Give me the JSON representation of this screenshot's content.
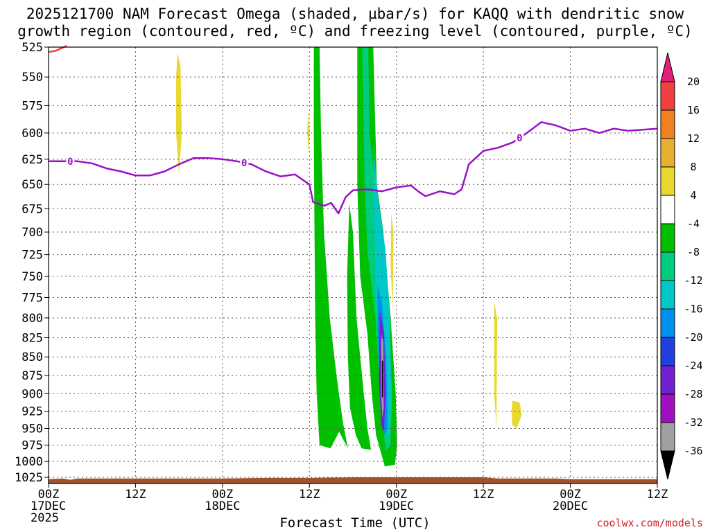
{
  "chart_data": {
    "type": "time-height",
    "title_line1": "2025121700 NAM Forecast Omega (shaded, µbar/s) for KAQQ with dendritic snow",
    "title_line2": "growth region (contoured, red, ºC) and freezing level (contoured, purple, ºC)",
    "xlabel": "Forecast Time (UTC)",
    "credit": "coolwx.com/models",
    "x_range_hours": [
      0,
      84
    ],
    "x_ticks": [
      {
        "h": 0,
        "lines": [
          "00Z",
          "17DEC",
          "2025"
        ]
      },
      {
        "h": 12,
        "lines": [
          "12Z"
        ]
      },
      {
        "h": 24,
        "lines": [
          "00Z",
          "18DEC"
        ]
      },
      {
        "h": 36,
        "lines": [
          "12Z"
        ]
      },
      {
        "h": 48,
        "lines": [
          "00Z",
          "19DEC"
        ]
      },
      {
        "h": 60,
        "lines": [
          "12Z"
        ]
      },
      {
        "h": 72,
        "lines": [
          "00Z",
          "20DEC"
        ]
      },
      {
        "h": 84,
        "lines": [
          "12Z"
        ]
      }
    ],
    "y_range_mb": [
      1035,
      525
    ],
    "y_ticks": [
      "525",
      "550",
      "575",
      "600",
      "625",
      "650",
      "675",
      "700",
      "725",
      "750",
      "775",
      "800",
      "825",
      "850",
      "875",
      "900",
      "925",
      "950",
      "975",
      "1000",
      "1025"
    ],
    "colorbar": {
      "labels": [
        "20",
        "16",
        "12",
        "8",
        "4",
        "-4",
        "-8",
        "-12",
        "-16",
        "-20",
        "-24",
        "-28",
        "-32",
        "-36"
      ],
      "colors": [
        "#e0207a",
        "#f04040",
        "#f08020",
        "#e8b030",
        "#e8d830",
        "#ffffff",
        "#00c000",
        "#00cc80",
        "#00c8c8",
        "#0090f0",
        "#2040e0",
        "#7020d0",
        "#a010c0",
        "#a0a0a0",
        "#000000"
      ]
    },
    "freezing_level_label": "0",
    "freezing_level": [
      [
        0,
        627
      ],
      [
        2,
        627
      ],
      [
        4,
        627
      ],
      [
        6,
        629
      ],
      [
        8,
        634
      ],
      [
        10,
        637
      ],
      [
        12,
        641
      ],
      [
        14,
        641
      ],
      [
        16,
        637
      ],
      [
        18,
        630
      ],
      [
        20,
        624
      ],
      [
        22,
        624
      ],
      [
        24,
        625
      ],
      [
        26,
        627
      ],
      [
        28,
        630
      ],
      [
        30,
        637
      ],
      [
        32,
        642
      ],
      [
        34,
        640
      ],
      [
        35,
        645
      ],
      [
        36,
        650
      ],
      [
        36.5,
        668
      ],
      [
        38,
        672
      ],
      [
        39,
        669
      ],
      [
        40,
        680
      ],
      [
        41,
        663
      ],
      [
        42,
        656
      ],
      [
        44,
        655
      ],
      [
        46,
        657
      ],
      [
        48,
        653
      ],
      [
        50,
        651
      ],
      [
        51,
        657
      ],
      [
        52,
        662
      ],
      [
        54,
        657
      ],
      [
        56,
        660
      ],
      [
        57,
        655
      ],
      [
        58,
        630
      ],
      [
        60,
        617
      ],
      [
        62,
        614
      ],
      [
        64,
        609
      ],
      [
        66,
        600
      ],
      [
        68,
        590
      ],
      [
        70,
        593
      ],
      [
        72,
        598
      ],
      [
        74,
        596
      ],
      [
        76,
        600
      ],
      [
        78,
        596
      ],
      [
        80,
        598
      ],
      [
        82,
        597
      ],
      [
        84,
        596
      ]
    ],
    "dendritic_region": [
      [
        0,
        529
      ],
      [
        1,
        528
      ],
      [
        2.5,
        524
      ]
    ],
    "omega_regions": [
      {
        "level": "-4 to -8",
        "color": "#00c000",
        "polygon": [
          [
            36.6,
            523
          ],
          [
            37.4,
            523
          ],
          [
            37.6,
            600
          ],
          [
            38.0,
            700
          ],
          [
            38.8,
            800
          ],
          [
            39.8,
            880
          ],
          [
            40.6,
            940
          ],
          [
            41.3,
            980
          ],
          [
            40.1,
            955
          ],
          [
            38.9,
            980
          ],
          [
            37.4,
            975
          ],
          [
            37.0,
            900
          ],
          [
            36.8,
            800
          ],
          [
            36.7,
            700
          ],
          [
            36.6,
            600
          ]
        ]
      },
      {
        "level": "-4 to -8",
        "color": "#00c000",
        "polygon": [
          [
            41.5,
            670
          ],
          [
            42.0,
            700
          ],
          [
            42.5,
            800
          ],
          [
            43.0,
            850
          ],
          [
            43.5,
            900
          ],
          [
            44.0,
            950
          ],
          [
            44.5,
            982
          ],
          [
            43.2,
            980
          ],
          [
            42.4,
            960
          ],
          [
            41.6,
            920
          ],
          [
            41.3,
            850
          ],
          [
            41.2,
            750
          ]
        ]
      },
      {
        "level": "-4 to -8",
        "color": "#00c000",
        "polygon": [
          [
            42.6,
            523
          ],
          [
            44.8,
            523
          ],
          [
            45.3,
            650
          ],
          [
            46.2,
            700
          ],
          [
            47.2,
            800
          ],
          [
            47.9,
            900
          ],
          [
            48.1,
            975
          ],
          [
            47.8,
            1005
          ],
          [
            46.4,
            1008
          ],
          [
            45.2,
            960
          ],
          [
            44.6,
            900
          ],
          [
            44.0,
            820
          ],
          [
            43.0,
            750
          ],
          [
            42.6,
            650
          ]
        ]
      },
      {
        "level": "-8 to -12",
        "color": "#00cc80",
        "polygon": [
          [
            43.3,
            523
          ],
          [
            44.1,
            523
          ],
          [
            44.3,
            600
          ],
          [
            45.0,
            650
          ],
          [
            46.2,
            700
          ],
          [
            47.0,
            800
          ],
          [
            47.4,
            900
          ],
          [
            47.2,
            975
          ],
          [
            46.5,
            985
          ],
          [
            45.8,
            900
          ],
          [
            45.1,
            800
          ],
          [
            44.0,
            720
          ],
          [
            43.6,
            650
          ]
        ]
      },
      {
        "level": "-12 to -16",
        "color": "#00c8c8",
        "polygon": [
          [
            44.8,
            610
          ],
          [
            45.4,
            660
          ],
          [
            46.5,
            720
          ],
          [
            47.1,
            800
          ],
          [
            47.3,
            900
          ],
          [
            47.0,
            960
          ],
          [
            46.3,
            950
          ],
          [
            45.7,
            850
          ],
          [
            45.2,
            760
          ],
          [
            44.9,
            680
          ]
        ]
      },
      {
        "level": "-16 to -20",
        "color": "#0090f0",
        "polygon": [
          [
            45.4,
            760
          ],
          [
            46.0,
            780
          ],
          [
            46.6,
            850
          ],
          [
            46.8,
            950
          ],
          [
            46.3,
            960
          ],
          [
            45.8,
            900
          ],
          [
            45.4,
            820
          ]
        ]
      },
      {
        "level": "-20 to -28",
        "color": "#7020d0",
        "polygon": [
          [
            45.7,
            790
          ],
          [
            46.3,
            820
          ],
          [
            46.5,
            900
          ],
          [
            46.3,
            955
          ],
          [
            45.9,
            945
          ],
          [
            45.6,
            880
          ]
        ]
      },
      {
        "level": "-32 to -36",
        "color": "#a0a0a0",
        "polygon": [
          [
            45.9,
            820
          ],
          [
            46.2,
            830
          ],
          [
            46.25,
            920
          ],
          [
            46.05,
            935
          ],
          [
            45.9,
            900
          ]
        ]
      },
      {
        "level": "below -36",
        "color": "#000000",
        "polygon": [
          [
            46.0,
            855
          ],
          [
            46.15,
            855
          ],
          [
            46.15,
            905
          ],
          [
            46.0,
            905
          ]
        ]
      },
      {
        "level": "+4 to +8",
        "color": "#e8d830",
        "polygon": [
          [
            17.8,
            530
          ],
          [
            18.2,
            540
          ],
          [
            18.4,
            600
          ],
          [
            18.0,
            640
          ],
          [
            17.6,
            600
          ],
          [
            17.6,
            550
          ]
        ]
      },
      {
        "level": "+4 to +8",
        "color": "#e8d830",
        "polygon": [
          [
            35.8,
            580
          ],
          [
            36.0,
            600
          ],
          [
            35.9,
            620
          ],
          [
            35.7,
            600
          ]
        ]
      },
      {
        "level": "+4 to +8",
        "color": "#e8d830",
        "polygon": [
          [
            47.3,
            680
          ],
          [
            47.6,
            700
          ],
          [
            47.5,
            790
          ],
          [
            47.2,
            740
          ]
        ]
      },
      {
        "level": "+4 to +8",
        "color": "#e8d830",
        "polygon": [
          [
            61.5,
            780
          ],
          [
            61.9,
            800
          ],
          [
            61.8,
            950
          ],
          [
            61.5,
            900
          ]
        ]
      },
      {
        "level": "+4 to +8",
        "color": "#e8d830",
        "polygon": [
          [
            64.0,
            910
          ],
          [
            65.0,
            912
          ],
          [
            65.3,
            930
          ],
          [
            64.6,
            950
          ],
          [
            64.0,
            945
          ],
          [
            63.9,
            925
          ]
        ]
      }
    ],
    "terrain_surface": [
      [
        0,
        1028
      ],
      [
        2,
        1027
      ],
      [
        3,
        1029
      ],
      [
        4,
        1027
      ],
      [
        12,
        1027
      ],
      [
        18,
        1027
      ],
      [
        24,
        1027
      ],
      [
        30,
        1026
      ],
      [
        36,
        1026
      ],
      [
        42,
        1025
      ],
      [
        48,
        1025
      ],
      [
        54,
        1025
      ],
      [
        60,
        1025
      ],
      [
        62,
        1027
      ],
      [
        66,
        1027
      ],
      [
        70,
        1027
      ],
      [
        72,
        1028
      ],
      [
        78,
        1028
      ],
      [
        84,
        1028
      ]
    ]
  }
}
